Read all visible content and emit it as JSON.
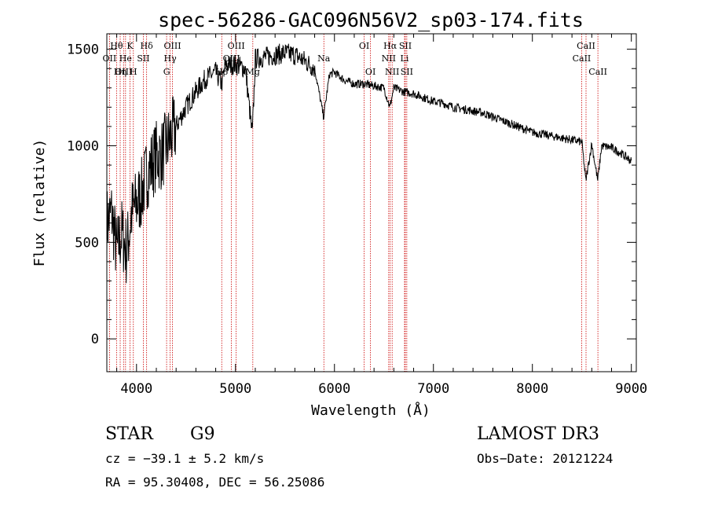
{
  "chart_data": {
    "type": "line",
    "title": "spec-56286-GAC096N56V2_sp03-174.fits",
    "xlabel": "Wavelength (Å)",
    "ylabel": "Flux (relative)",
    "xlim": [
      3700,
      9050
    ],
    "ylim": [
      -170,
      1580
    ],
    "xticks": [
      4000,
      5000,
      6000,
      7000,
      8000,
      9000
    ],
    "xtick_labels": [
      "4000",
      "5000",
      "6000",
      "7000",
      "8000",
      "9000"
    ],
    "yticks": [
      0,
      500,
      1000,
      1500
    ],
    "ytick_labels": [
      "0",
      "500",
      "1000",
      "1500"
    ],
    "series": [
      {
        "name": "flux",
        "x": [
          3700,
          3750,
          3800,
          3850,
          3900,
          3950,
          4000,
          4050,
          4100,
          4150,
          4200,
          4250,
          4300,
          4350,
          4400,
          4450,
          4500,
          4600,
          4700,
          4800,
          4860,
          4900,
          5000,
          5100,
          5170,
          5200,
          5300,
          5400,
          5500,
          5600,
          5700,
          5800,
          5890,
          5950,
          6000,
          6100,
          6200,
          6300,
          6400,
          6500,
          6560,
          6600,
          6700,
          6800,
          6900,
          7000,
          7100,
          7200,
          7300,
          7400,
          7500,
          7600,
          7700,
          7800,
          7900,
          8000,
          8100,
          8200,
          8300,
          8400,
          8500,
          8540,
          8600,
          8660,
          8700,
          8800,
          8900,
          9000
        ],
        "y": [
          600,
          650,
          450,
          550,
          450,
          650,
          700,
          750,
          850,
          900,
          950,
          950,
          1000,
          1050,
          1100,
          1150,
          1200,
          1280,
          1350,
          1380,
          1320,
          1420,
          1420,
          1400,
          1050,
          1450,
          1460,
          1470,
          1480,
          1470,
          1440,
          1400,
          1150,
          1370,
          1380,
          1340,
          1320,
          1320,
          1310,
          1300,
          1200,
          1300,
          1280,
          1270,
          1250,
          1230,
          1220,
          1200,
          1190,
          1180,
          1170,
          1150,
          1130,
          1110,
          1090,
          1070,
          1060,
          1050,
          1040,
          1030,
          1020,
          820,
          1010,
          820,
          1000,
          990,
          960,
          920
        ]
      }
    ],
    "lines": [
      {
        "label": "Hθ",
        "x": 3798,
        "row": 0
      },
      {
        "label": "OII",
        "x": 3727,
        "row": 1
      },
      {
        "label": "OIII",
        "x": 3869,
        "row": 2
      },
      {
        "label": "He",
        "x": 3889,
        "row": 1
      },
      {
        "label": "K",
        "x": 3934,
        "row": 0
      },
      {
        "label": "Hη",
        "x": 3835,
        "row": 2
      },
      {
        "label": "SII",
        "x": 4069,
        "row": 1
      },
      {
        "label": "Hδ",
        "x": 4102,
        "row": 0
      },
      {
        "label": "H",
        "x": 3968,
        "row": 2
      },
      {
        "label": "OIII",
        "x": 4363,
        "row": 0
      },
      {
        "label": "Hγ",
        "x": 4340,
        "row": 1
      },
      {
        "label": "G",
        "x": 4304,
        "row": 2
      },
      {
        "label": "OIII",
        "x": 5007,
        "row": 0
      },
      {
        "label": "OIII",
        "x": 4959,
        "row": 1
      },
      {
        "label": "Hβ",
        "x": 4861,
        "row": 2
      },
      {
        "label": "Mg",
        "x": 5175,
        "row": 2
      },
      {
        "label": "Na",
        "x": 5893,
        "row": 1
      },
      {
        "label": "OI",
        "x": 6300,
        "row": 0
      },
      {
        "label": "OI",
        "x": 6364,
        "row": 2
      },
      {
        "label": "Hα",
        "x": 6563,
        "row": 0
      },
      {
        "label": "NII",
        "x": 6548,
        "row": 1
      },
      {
        "label": "NII",
        "x": 6583,
        "row": 2
      },
      {
        "label": "SII",
        "x": 6716,
        "row": 0
      },
      {
        "label": "Li",
        "x": 6708,
        "row": 1
      },
      {
        "label": "SII",
        "x": 6731,
        "row": 2
      },
      {
        "label": "CaII",
        "x": 8498,
        "row": 1
      },
      {
        "label": "CaII",
        "x": 8542,
        "row": 0
      },
      {
        "label": "CaII",
        "x": 8662,
        "row": 2
      }
    ]
  },
  "info": {
    "object_class": "STAR",
    "subclass": "G9",
    "survey": "LAMOST DR3",
    "cz": "cz = −39.1 ± 5.2 km/s",
    "obs_date": "Obs−Date: 20121224",
    "coords": "RA =  95.30408, DEC =  56.25086"
  },
  "colors": {
    "line_marker": "#cc0000",
    "spectrum": "#000000"
  }
}
